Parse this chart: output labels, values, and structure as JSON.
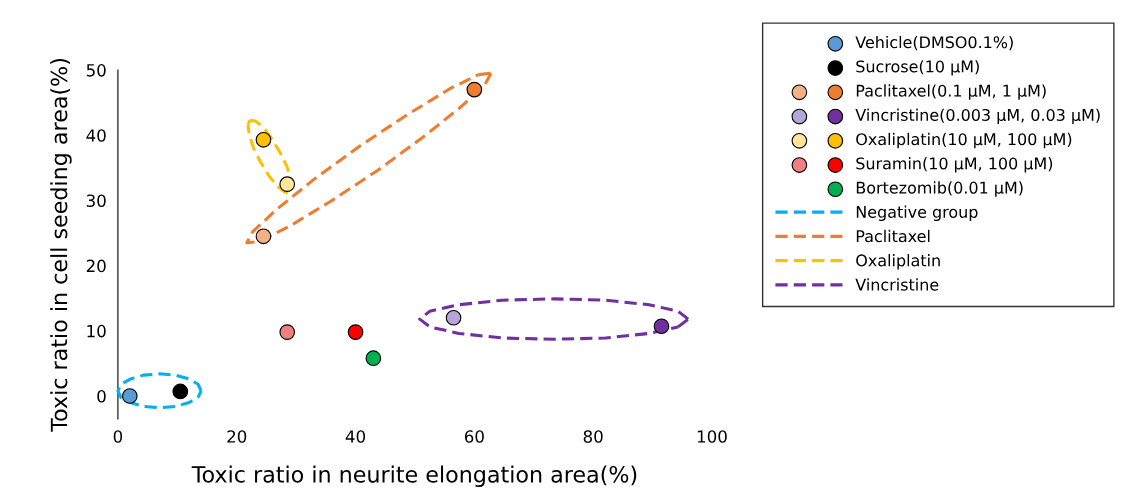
{
  "chart_data": {
    "type": "scatter",
    "xlabel": "Toxic ratio in neurite elongation area(%)",
    "ylabel": "Toxic ratio in cell seeding area(%)",
    "xlim": [
      0,
      100
    ],
    "xticks": [
      0,
      20,
      40,
      60,
      80,
      100
    ],
    "ylim": [
      -3.5,
      50
    ],
    "yticks": [
      0,
      10,
      20,
      30,
      40,
      50
    ],
    "grid": false,
    "legend": "right",
    "marker": "circle",
    "series": [
      {
        "name": "Vehicle(DMSO0.1%)",
        "color": "#5b9bd5",
        "x": [
          2
        ],
        "values": [
          0
        ]
      },
      {
        "name": "Sucrose(10 μM)",
        "color": "#000000",
        "x": [
          10.5
        ],
        "values": [
          0.7
        ]
      },
      {
        "name": "Paclitaxel(0.1 μM, 1 μM)",
        "colors": [
          "#f4b183",
          "#ed7d31"
        ],
        "x": [
          24.5,
          60
        ],
        "values": [
          24.5,
          47
        ]
      },
      {
        "name": "Vincristine(0.003 μM, 0.03 μM)",
        "colors": [
          "#b4a7d6",
          "#7030a0"
        ],
        "x": [
          56.5,
          91.5
        ],
        "values": [
          12,
          10.7
        ]
      },
      {
        "name": "Oxaliplatin(10 μM, 100 μM)",
        "colors": [
          "#ffe699",
          "#ffc000"
        ],
        "x": [
          28.5,
          24.5
        ],
        "values": [
          32.5,
          39.3
        ]
      },
      {
        "name": "Suramin(10 μM, 100 μM)",
        "colors": [
          "#f08080",
          "#ff0000"
        ],
        "x": [
          28.5,
          40
        ],
        "values": [
          9.8,
          9.8
        ]
      },
      {
        "name": "Bortezomib(0.01 μM)",
        "color": "#00b050",
        "x": [
          43
        ],
        "values": [
          5.8
        ]
      },
      {
        "name": "Negative group",
        "type": "line",
        "marker": "none",
        "line_style": "dashed",
        "color": "#00b0f0",
        "x": [
          14,
          13.5,
          12.0,
          9.7,
          7,
          4.3,
          2.1,
          0.5,
          0,
          0.5,
          2.1,
          4.3,
          7,
          9.7,
          12.0,
          13.5
        ],
        "values": [
          0.8,
          1.8,
          2.6,
          3.2,
          3.4,
          3.2,
          2.6,
          1.8,
          0.8,
          -0.2,
          -1.0,
          -1.6,
          -1.8,
          -1.6,
          -1.0,
          -0.2
        ]
      },
      {
        "name": "Paclitaxel",
        "type": "line",
        "marker": "none",
        "line_style": "dashed",
        "color": "#ed7d31",
        "x": [
          62.8,
          61.8,
          57.8,
          51.5,
          43.7,
          35.7,
          28.8,
          23.8,
          21.7,
          22.7,
          26.7,
          33.1,
          40.8,
          48.8,
          55.8,
          60.7
        ],
        "values": [
          49.5,
          47.8,
          44.4,
          39.8,
          34.6,
          29.8,
          26.0,
          23.7,
          23.5,
          25.2,
          28.6,
          33.3,
          38.4,
          43.2,
          47.1,
          49.3
        ]
      },
      {
        "name": "Oxaliplatin",
        "type": "line",
        "marker": "none",
        "line_style": "dashed",
        "color": "#ffc000",
        "x": [
          22.2,
          23.1,
          24.4,
          25.8,
          27.2,
          28.4,
          29.1,
          29.3,
          29.0,
          28.1,
          26.8,
          25.4,
          24.0,
          22.8,
          22.1,
          21.9
        ],
        "values": [
          42.3,
          42.2,
          41.3,
          39.6,
          37.5,
          35.3,
          33.4,
          31.9,
          31.1,
          31.3,
          32.2,
          33.8,
          35.9,
          38.1,
          40.1,
          41.6
        ]
      },
      {
        "name": "Vincristine",
        "type": "line",
        "marker": "none",
        "line_style": "dashed",
        "color": "#7030a0",
        "x": [
          96.0,
          94.3,
          89.4,
          82.1,
          73.4,
          64.7,
          57.4,
          52.5,
          50.8,
          52.5,
          57.4,
          64.7,
          73.4,
          82.1,
          89.4,
          94.3
        ],
        "values": [
          11.8,
          13.0,
          14.0,
          14.7,
          14.9,
          14.7,
          14.0,
          13.0,
          11.8,
          10.6,
          9.6,
          8.9,
          8.7,
          8.9,
          9.6,
          10.6
        ]
      }
    ]
  }
}
